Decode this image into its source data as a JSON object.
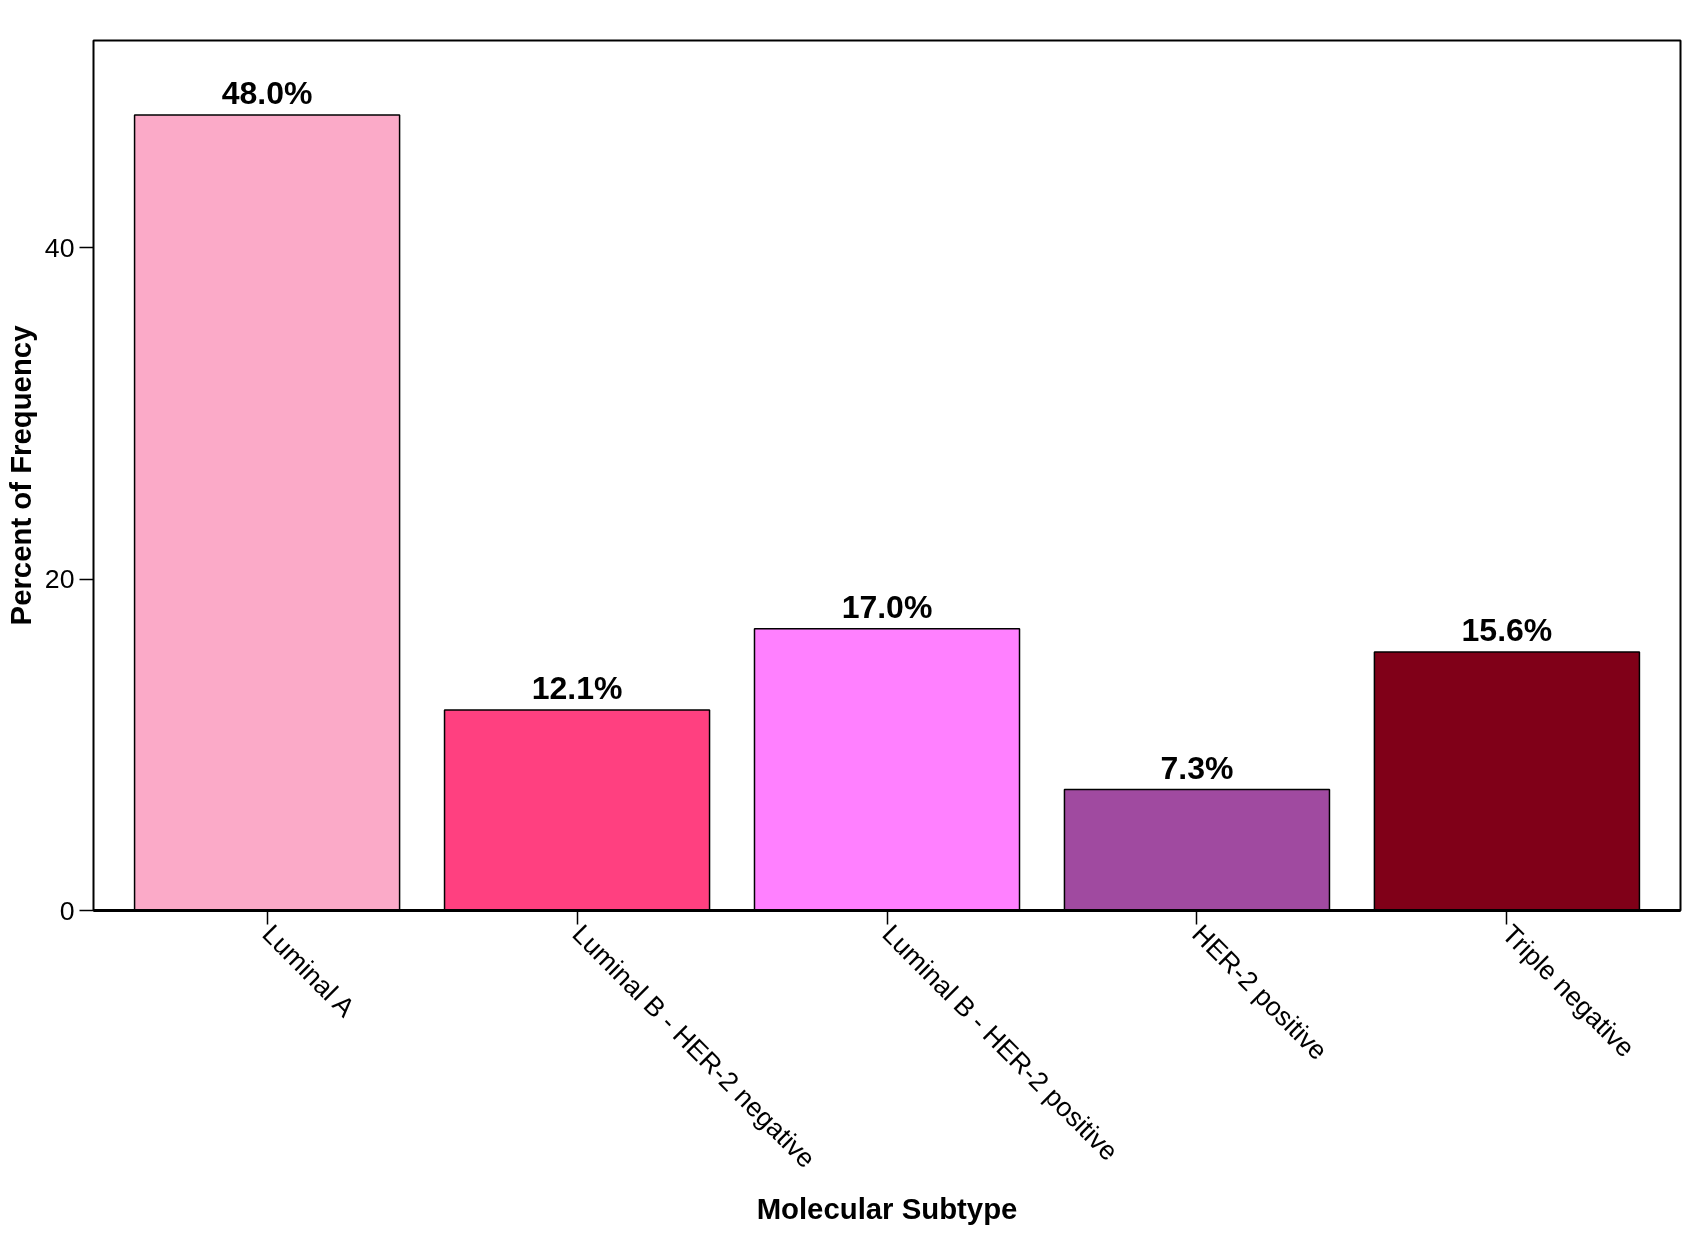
{
  "chart_data": {
    "type": "bar",
    "xlabel": "Molecular Subtype",
    "ylabel": "Percent of Frequency",
    "categories": [
      "Luminal A",
      "Luminal B - HER-2 negative",
      "Luminal B - HER-2 positive",
      "HER-2 positive",
      "Triple negative"
    ],
    "values": [
      48.0,
      12.1,
      17.0,
      7.3,
      15.6
    ],
    "colors": [
      "#fbaac8",
      "#ff4080",
      "#ff80ff",
      "#a04aa0",
      "#800018"
    ],
    "value_labels": [
      "48.0%",
      "12.1%",
      "17.0%",
      "7.3%",
      "15.6%"
    ],
    "ylim": [
      0,
      52.5
    ],
    "yticks": [
      0,
      20,
      40
    ],
    "grid": false
  }
}
